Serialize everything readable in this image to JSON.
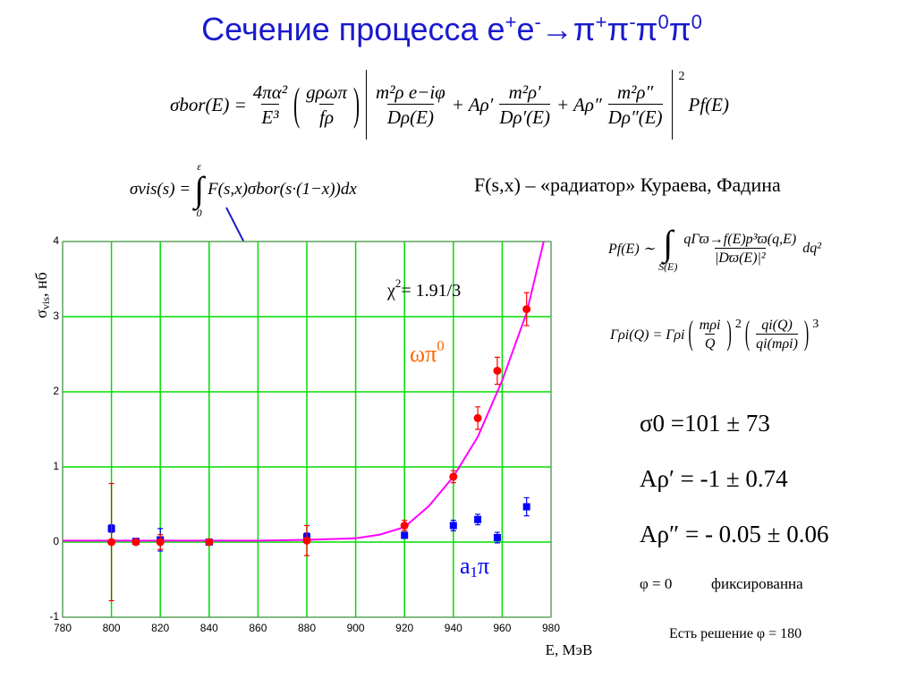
{
  "title": [
    {
      "text": "Сечение процесса e",
      "sup": "+"
    },
    {
      "text": "e",
      "sup": "-"
    },
    {
      "text": "→π",
      "sup": "+"
    },
    {
      "text": "π",
      "sup": "-"
    },
    {
      "text": "π",
      "sup": "0"
    },
    {
      "text": "π",
      "sup": "0"
    }
  ],
  "formula_bor": {
    "lhs": "σbor(E) =",
    "f1": {
      "num": "4πα²",
      "den": "E³"
    },
    "f2": {
      "num": "gρωπ",
      "den": "fρ"
    },
    "t1": {
      "num": "m²ρ e−iφ",
      "den": "Dρ(E)"
    },
    "a2": "+ Aρ′",
    "t2": {
      "num": "m²ρ′",
      "den": "Dρ′(E)"
    },
    "a3": "+ Aρ″",
    "t3": {
      "num": "m²ρ″",
      "den": "Dρ″(E)"
    },
    "power": "2",
    "tail": "Pf(E)"
  },
  "formula_vis": {
    "lhs": "σvis(s) =",
    "integral": "∫",
    "upper": "ε",
    "lower": "0",
    "body": "F(s,x)σbor(s·(1−x))dx"
  },
  "radiator": "F(s,x) – «радиатор» Кураева, Фадина",
  "formula_pf": {
    "lhs": "Pf(E) ∼",
    "integral": "∫",
    "lower": "S(E)",
    "frac": {
      "num": "qΓϖ→f(E)p³ϖ(q,E)",
      "den": "|Dϖ(E)|²"
    },
    "tail": "dq²"
  },
  "formula_gamma": {
    "lhs": "Γρi(Q) = Γρi",
    "f1": {
      "num": "mρi",
      "den": "Q"
    },
    "p1": "2",
    "f2": {
      "num": "qi(Q)",
      "den": "qi(mρi)"
    },
    "p2": "3"
  },
  "params": [
    "σ0 =101 ± 73",
    "Aρ′ = -1 ± 0.74",
    "Aρ″ = - 0.05 ± 0.06"
  ],
  "phi": {
    "value": "φ = 0",
    "note": "фиксированна"
  },
  "solution": "Есть решение φ = 180",
  "chart_data": {
    "type": "scatter",
    "x": [
      800,
      810,
      820,
      840,
      880,
      920,
      940,
      950,
      958,
      970
    ],
    "series": [
      {
        "color": "#0000ff",
        "values": [
          0.18,
          0.01,
          0.03,
          0.0,
          0.07,
          0.09,
          0.22,
          0.3,
          0.06,
          0.47
        ],
        "errors": [
          0.05,
          0.03,
          0.15,
          0.03,
          0.05,
          0.04,
          0.07,
          0.07,
          0.07,
          0.12
        ]
      },
      {
        "color": "#ff0000",
        "values": [
          0.0,
          0.0,
          0.0,
          0.0,
          0.02,
          0.22,
          0.87,
          1.65,
          2.28,
          3.1
        ],
        "errors": [
          0.78,
          0.03,
          0.1,
          0.03,
          0.2,
          0.07,
          0.08,
          0.15,
          0.18,
          0.22
        ]
      }
    ],
    "fit": {
      "color": "#ff00ff",
      "x": [
        780,
        800,
        820,
        840,
        860,
        880,
        900,
        910,
        920,
        930,
        940,
        950,
        960,
        970,
        977
      ],
      "values": [
        0.02,
        0.02,
        0.02,
        0.02,
        0.02,
        0.03,
        0.05,
        0.1,
        0.2,
        0.48,
        0.87,
        1.4,
        2.15,
        3.05,
        4.0
      ]
    },
    "xlim": [
      780,
      980
    ],
    "ylim": [
      -1,
      4
    ],
    "xticks": [
      780,
      800,
      820,
      840,
      860,
      880,
      900,
      920,
      940,
      960,
      980
    ],
    "yticks": [
      -1,
      0,
      1,
      2,
      3,
      4
    ],
    "grid": true,
    "grid_color": "#00dd00",
    "xlabel": "E, МэВ",
    "ylabel": {
      "symbol": "σ",
      "sub": "vis",
      "unit": ", нб"
    },
    "annotations": {
      "chi": {
        "text": "χ",
        "sup": "2",
        "rest": "= 1.91/3"
      },
      "omega": {
        "text": "ωπ",
        "sup": "0"
      },
      "a1": {
        "text": "a",
        "sub": "1",
        "rest": "π"
      }
    }
  }
}
